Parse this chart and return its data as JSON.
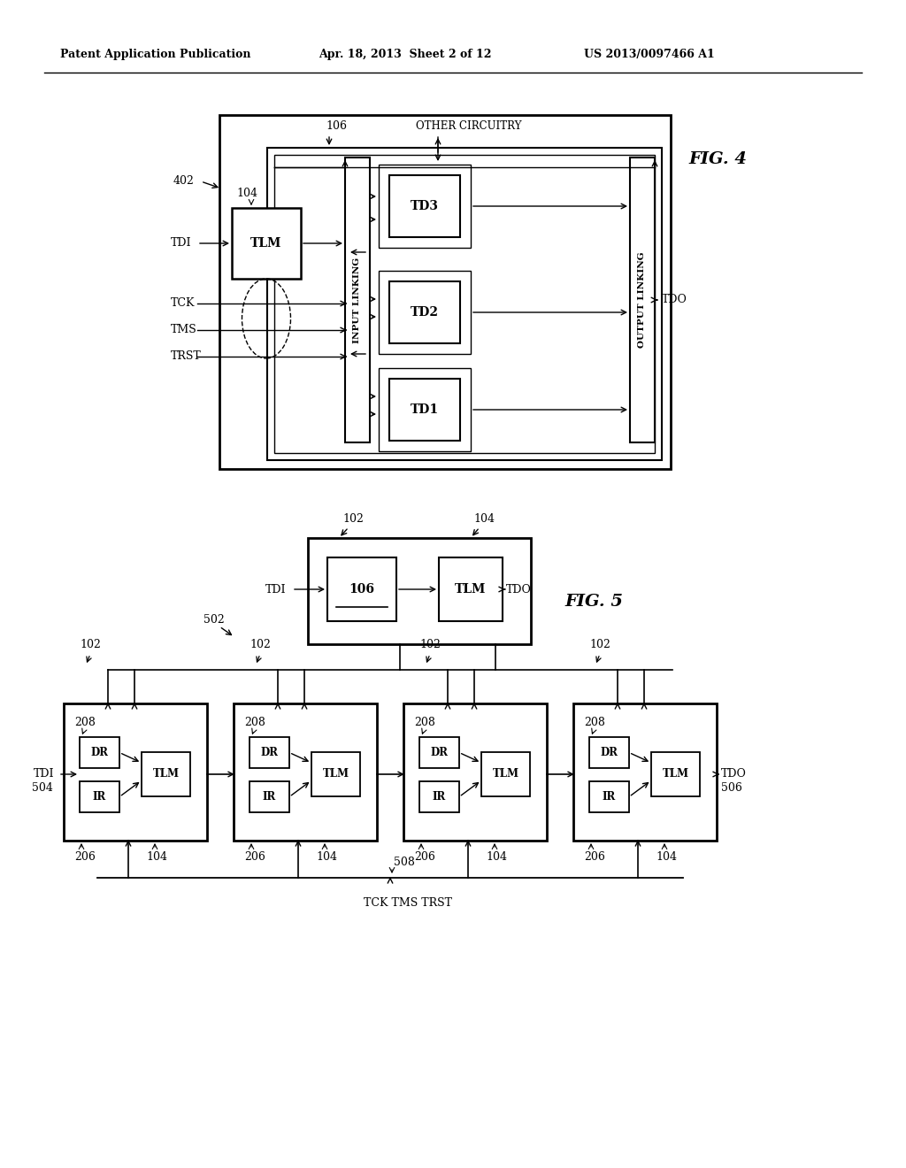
{
  "bg_color": "#ffffff",
  "header_left": "Patent Application Publication",
  "header_mid": "Apr. 18, 2013  Sheet 2 of 12",
  "header_right": "US 2013/0097466 A1",
  "fig4_label": "FIG. 4",
  "fig5_label": "FIG. 5"
}
